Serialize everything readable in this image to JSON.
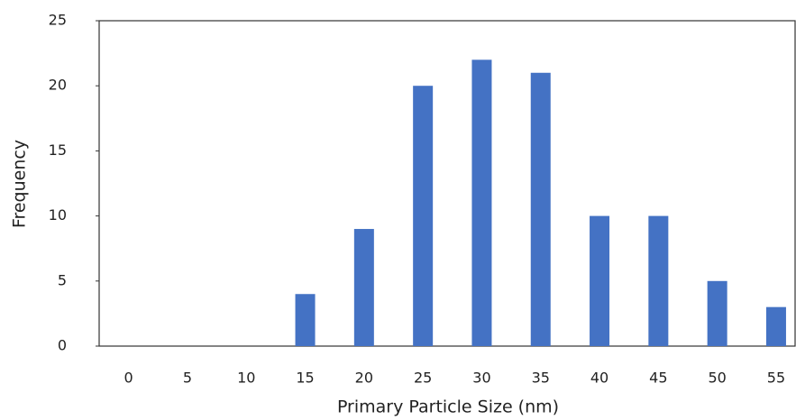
{
  "chart_data": {
    "type": "bar",
    "x_label": "Primary Particle Size (nm)",
    "y_label": "Frequency",
    "categories": [
      "0",
      "5",
      "10",
      "15",
      "20",
      "25",
      "30",
      "35",
      "40",
      "45",
      "50",
      "55"
    ],
    "values": [
      0,
      0,
      0,
      4,
      9,
      20,
      22,
      21,
      10,
      10,
      5,
      3
    ],
    "color": "#4472c4",
    "ylim": [
      0,
      25
    ],
    "yticks": [
      0,
      5,
      10,
      15,
      20,
      25
    ],
    "grid": false
  }
}
